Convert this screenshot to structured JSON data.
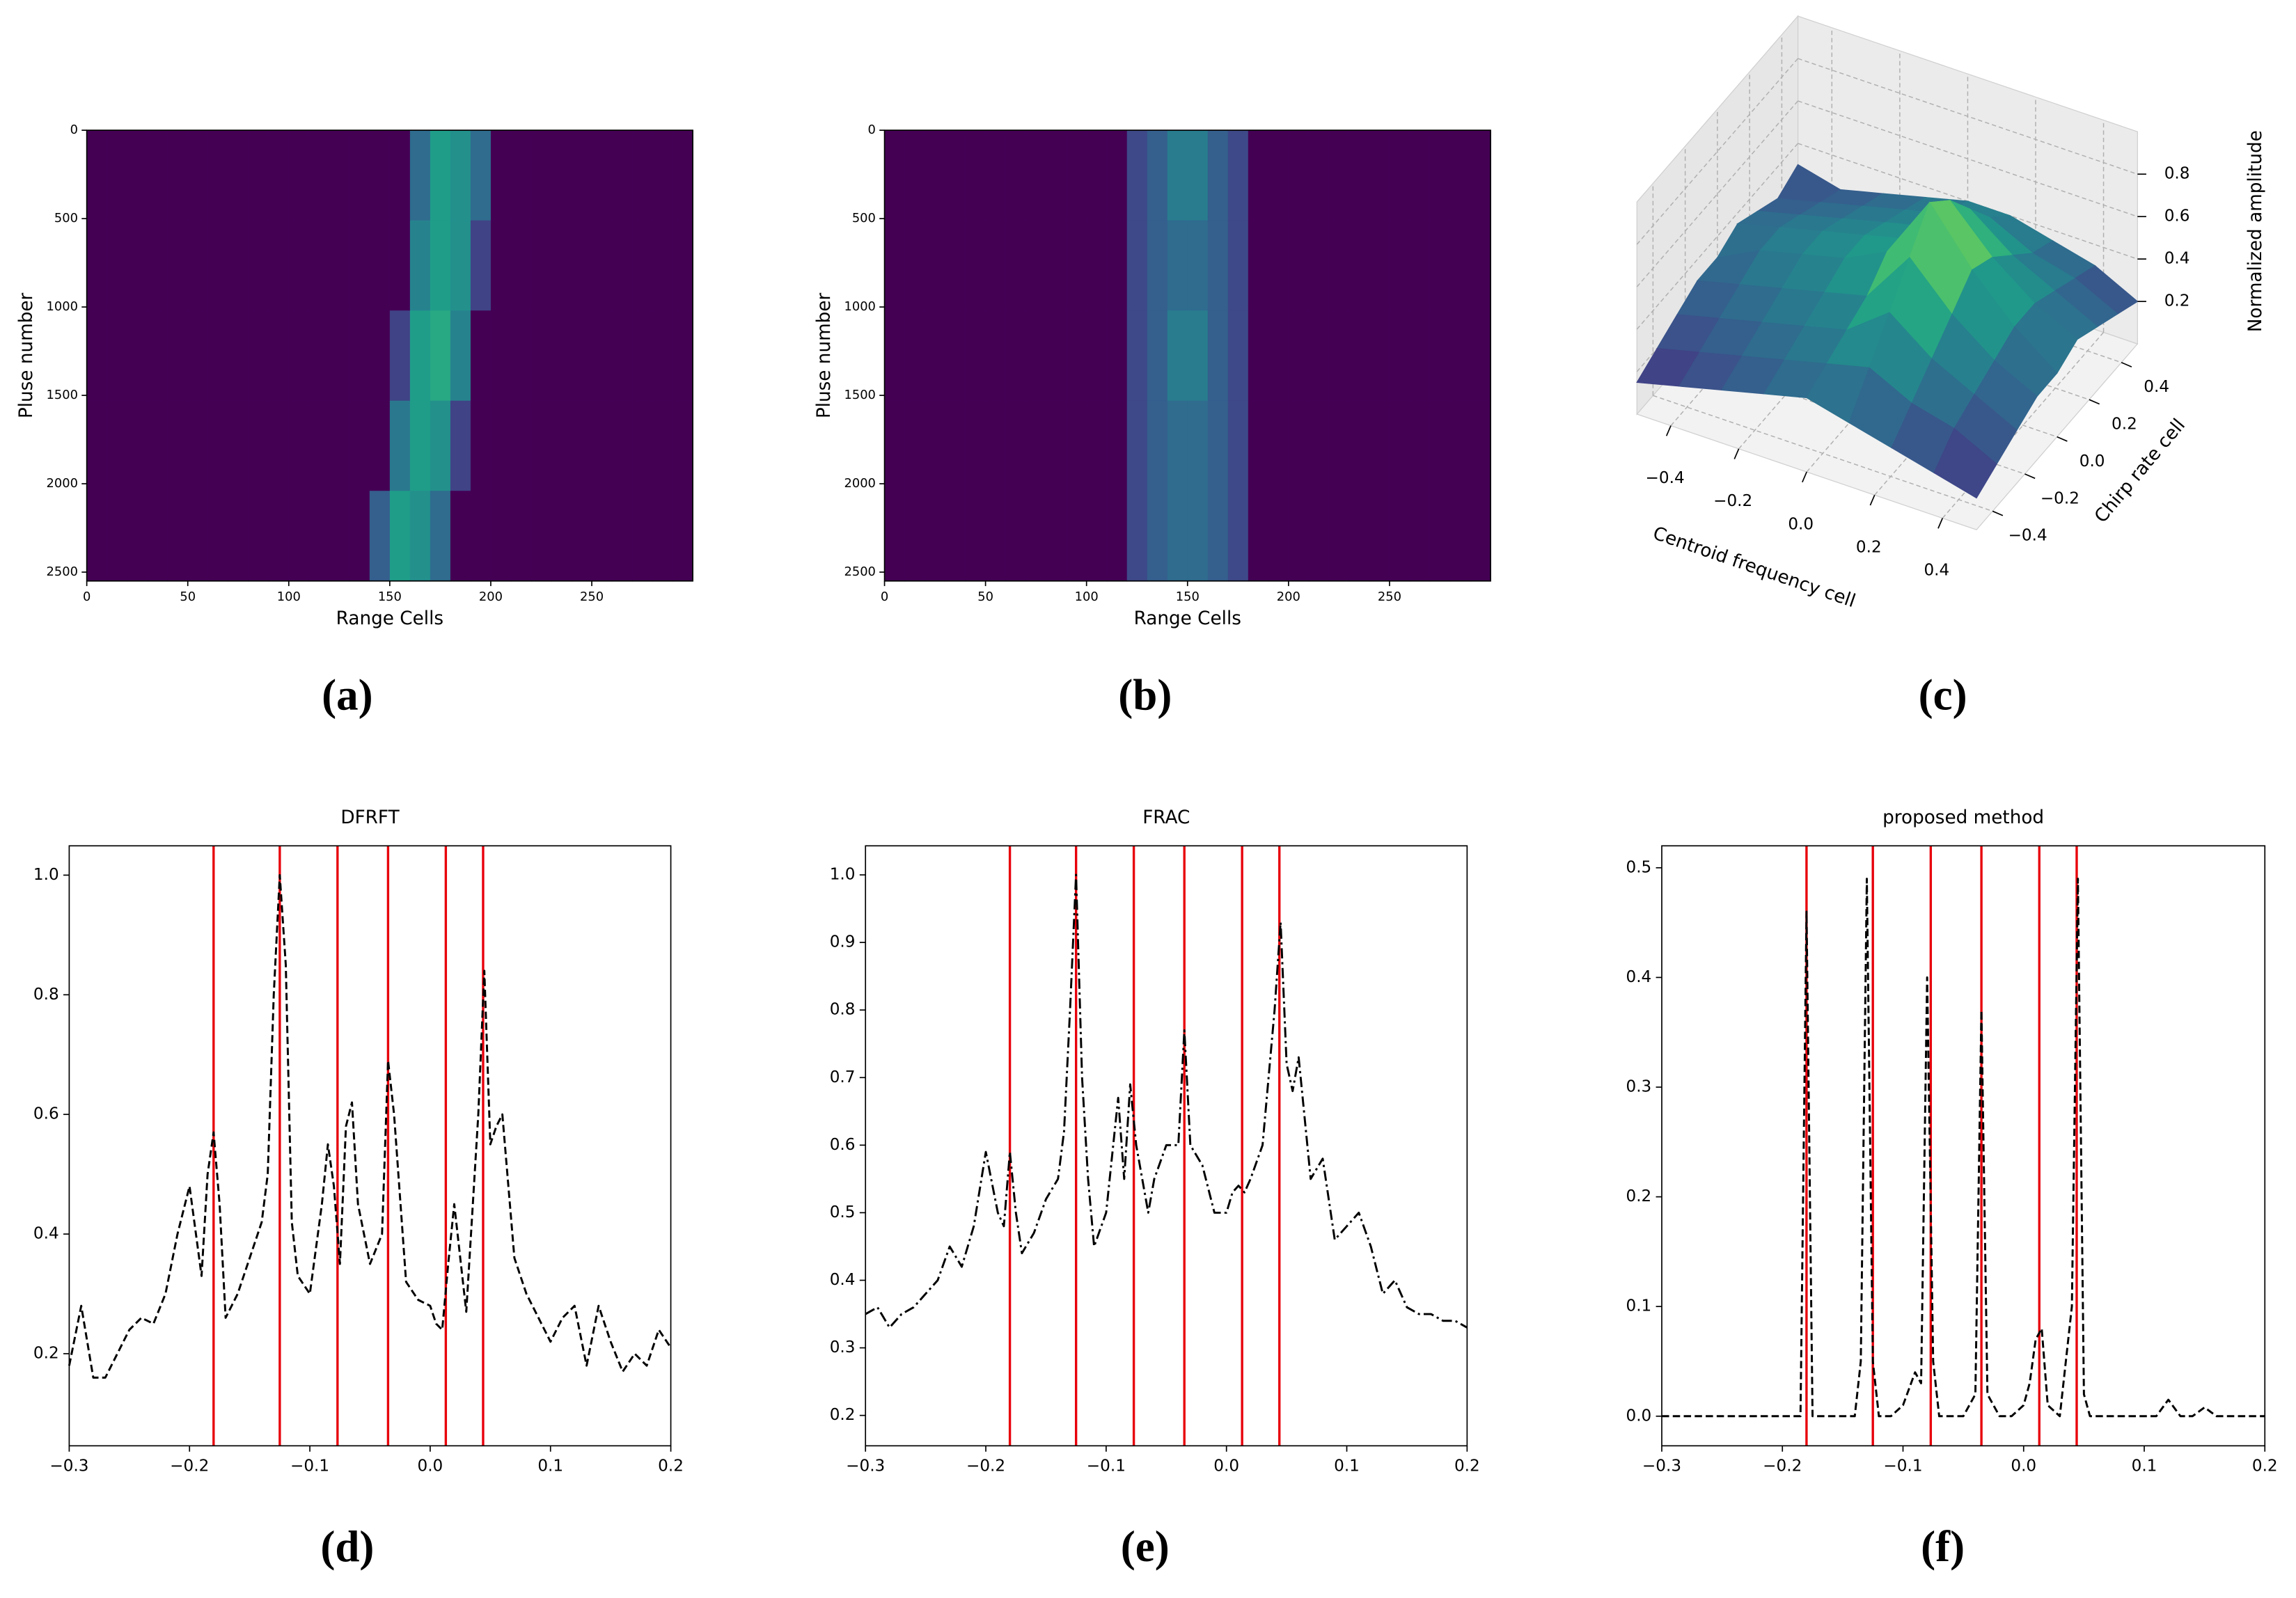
{
  "chart_data": [
    {
      "type": "heatmap",
      "panel_label": "(a)",
      "xlabel": "Range Cells",
      "ylabel": "Pluse number",
      "xlim": [
        0,
        300
      ],
      "ylim": [
        0,
        2550
      ],
      "y_inverted": true,
      "xticks": [
        0,
        50,
        100,
        150,
        200,
        250
      ],
      "yticks": [
        0,
        500,
        1000,
        1500,
        2000,
        2500
      ],
      "colormap": "viridis",
      "clim": [
        0,
        1
      ],
      "z": [
        [
          0,
          0,
          0,
          0,
          0,
          0,
          0,
          0,
          0,
          0,
          0,
          0,
          0,
          0,
          0,
          0,
          0.35,
          0.55,
          0.5,
          0.35,
          0,
          0,
          0,
          0,
          0,
          0,
          0,
          0,
          0,
          0
        ],
        [
          0,
          0,
          0,
          0,
          0,
          0,
          0,
          0,
          0,
          0,
          0,
          0,
          0,
          0,
          0,
          0,
          0.45,
          0.55,
          0.5,
          0.2,
          0,
          0,
          0,
          0,
          0,
          0,
          0,
          0,
          0,
          0
        ],
        [
          0,
          0,
          0,
          0,
          0,
          0,
          0,
          0,
          0,
          0,
          0,
          0,
          0,
          0,
          0,
          0.2,
          0.55,
          0.6,
          0.45,
          0,
          0,
          0,
          0,
          0,
          0,
          0,
          0,
          0,
          0,
          0
        ],
        [
          0,
          0,
          0,
          0,
          0,
          0,
          0,
          0,
          0,
          0,
          0,
          0,
          0,
          0,
          0,
          0.4,
          0.55,
          0.5,
          0.2,
          0,
          0,
          0,
          0,
          0,
          0,
          0,
          0,
          0,
          0,
          0
        ],
        [
          0,
          0,
          0,
          0,
          0,
          0,
          0,
          0,
          0,
          0,
          0,
          0,
          0,
          0,
          0.3,
          0.55,
          0.5,
          0.35,
          0,
          0,
          0,
          0,
          0,
          0,
          0,
          0,
          0,
          0,
          0,
          0
        ]
      ]
    },
    {
      "type": "heatmap",
      "panel_label": "(b)",
      "xlabel": "Range Cells",
      "ylabel": "Pluse number",
      "xlim": [
        0,
        300
      ],
      "ylim": [
        0,
        2550
      ],
      "y_inverted": true,
      "xticks": [
        0,
        50,
        100,
        150,
        200,
        250
      ],
      "yticks": [
        0,
        500,
        1000,
        1500,
        2000,
        2500
      ],
      "colormap": "viridis",
      "clim": [
        0,
        1
      ],
      "z": [
        [
          0,
          0,
          0,
          0,
          0,
          0,
          0,
          0,
          0,
          0,
          0,
          0,
          0.22,
          0.3,
          0.42,
          0.42,
          0.3,
          0.22,
          0,
          0,
          0,
          0,
          0,
          0,
          0,
          0,
          0,
          0,
          0,
          0
        ],
        [
          0,
          0,
          0,
          0,
          0,
          0,
          0,
          0,
          0,
          0,
          0,
          0,
          0.22,
          0.3,
          0.35,
          0.35,
          0.3,
          0.22,
          0,
          0,
          0,
          0,
          0,
          0,
          0,
          0,
          0,
          0,
          0,
          0
        ],
        [
          0,
          0,
          0,
          0,
          0,
          0,
          0,
          0,
          0,
          0,
          0,
          0,
          0.22,
          0.3,
          0.42,
          0.42,
          0.3,
          0.22,
          0,
          0,
          0,
          0,
          0,
          0,
          0,
          0,
          0,
          0,
          0,
          0
        ],
        [
          0,
          0,
          0,
          0,
          0,
          0,
          0,
          0,
          0,
          0,
          0,
          0,
          0.22,
          0.3,
          0.35,
          0.35,
          0.3,
          0.22,
          0,
          0,
          0,
          0,
          0,
          0,
          0,
          0,
          0,
          0,
          0,
          0
        ],
        [
          0,
          0,
          0,
          0,
          0,
          0,
          0,
          0,
          0,
          0,
          0,
          0,
          0.22,
          0.3,
          0.35,
          0.35,
          0.3,
          0.22,
          0,
          0,
          0,
          0,
          0,
          0,
          0,
          0,
          0,
          0,
          0,
          0
        ]
      ]
    },
    {
      "type": "surface3d",
      "panel_label": "(c)",
      "xlabel": "Centroid frequency cell",
      "ylabel": "Chirp rate cell",
      "zlabel": "Normalized amplitude",
      "xlim": [
        -0.5,
        0.5
      ],
      "ylim": [
        -0.5,
        0.5
      ],
      "zlim": [
        0,
        1
      ],
      "colormap": "viridis",
      "xticks": [
        {
          "value": -0.4,
          "label": "−0.4"
        },
        {
          "value": -0.2,
          "label": "−0.2"
        },
        {
          "value": 0,
          "label": "0.0"
        },
        0.2,
        0.4
      ],
      "yticks": [
        {
          "value": -0.4,
          "label": "−0.4"
        },
        {
          "value": -0.2,
          "label": "−0.2"
        },
        {
          "value": 0,
          "label": "0.0"
        },
        0.2,
        0.4
      ],
      "zticks": [
        0.2,
        0.4,
        0.6,
        0.8
      ],
      "x": [
        -0.5,
        -0.375,
        -0.25,
        -0.125,
        0,
        0.125,
        0.25,
        0.375,
        0.5
      ],
      "y": [
        -0.5,
        -0.375,
        -0.25,
        -0.125,
        0,
        0.125,
        0.25,
        0.375,
        0.5
      ],
      "z": [
        [
          0.15,
          0.2,
          0.25,
          0.3,
          0.35,
          0.3,
          0.25,
          0.2,
          0.15
        ],
        [
          0.2,
          0.25,
          0.3,
          0.35,
          0.4,
          0.45,
          0.35,
          0.3,
          0.2
        ],
        [
          0.25,
          0.3,
          0.35,
          0.4,
          0.45,
          0.6,
          0.45,
          0.35,
          0.25
        ],
        [
          0.3,
          0.35,
          0.4,
          0.45,
          0.5,
          0.75,
          0.55,
          0.4,
          0.3
        ],
        [
          0.3,
          0.4,
          0.45,
          0.5,
          0.6,
          0.9,
          0.65,
          0.45,
          0.3
        ],
        [
          0.35,
          0.4,
          0.45,
          0.5,
          0.55,
          0.8,
          0.6,
          0.45,
          0.35
        ],
        [
          0.3,
          0.35,
          0.4,
          0.45,
          0.5,
          0.65,
          0.5,
          0.4,
          0.3
        ],
        [
          0.25,
          0.3,
          0.35,
          0.4,
          0.45,
          0.5,
          0.4,
          0.35,
          0.25
        ],
        [
          0.3,
          0.25,
          0.3,
          0.35,
          0.4,
          0.4,
          0.35,
          0.3,
          0.2
        ]
      ]
    },
    {
      "type": "line",
      "panel_label": "(d)",
      "title": "DFRFT",
      "color": "#000000",
      "linestyle": "dashed",
      "vlines": [
        -0.18,
        -0.125,
        -0.077,
        -0.035,
        0.013,
        0.044
      ],
      "vline_color": "#e8000b",
      "xlim": [
        -0.3,
        0.2
      ],
      "ylim": [
        0.046,
        1.049
      ],
      "xticks": [
        {
          "value": -0.3,
          "label": "−0.3"
        },
        {
          "value": -0.2,
          "label": "−0.2"
        },
        {
          "value": -0.1,
          "label": "−0.1"
        },
        {
          "value": 0,
          "label": "0.0"
        },
        0.1,
        0.2
      ],
      "yticks": [
        0.2,
        0.4,
        0.6,
        0.8,
        {
          "value": 1,
          "label": "1.0"
        }
      ],
      "x": [
        -0.3,
        -0.29,
        -0.28,
        -0.27,
        -0.26,
        -0.25,
        -0.24,
        -0.23,
        -0.22,
        -0.21,
        -0.2,
        -0.19,
        -0.185,
        -0.18,
        -0.175,
        -0.17,
        -0.16,
        -0.15,
        -0.14,
        -0.135,
        -0.13,
        -0.125,
        -0.12,
        -0.115,
        -0.11,
        -0.1,
        -0.09,
        -0.085,
        -0.08,
        -0.075,
        -0.07,
        -0.065,
        -0.06,
        -0.05,
        -0.04,
        -0.035,
        -0.03,
        -0.02,
        -0.01,
        0,
        0.005,
        0.01,
        0.015,
        0.02,
        0.03,
        0.04,
        0.045,
        0.05,
        0.055,
        0.06,
        0.07,
        0.08,
        0.09,
        0.1,
        0.11,
        0.12,
        0.13,
        0.14,
        0.15,
        0.16,
        0.17,
        0.18,
        0.19,
        0.2
      ],
      "values": [
        0.18,
        0.28,
        0.16,
        0.16,
        0.2,
        0.24,
        0.26,
        0.25,
        0.3,
        0.4,
        0.48,
        0.33,
        0.5,
        0.57,
        0.45,
        0.26,
        0.3,
        0.36,
        0.42,
        0.5,
        0.8,
        1.0,
        0.85,
        0.42,
        0.33,
        0.3,
        0.45,
        0.55,
        0.48,
        0.35,
        0.58,
        0.62,
        0.45,
        0.35,
        0.4,
        0.69,
        0.6,
        0.32,
        0.29,
        0.28,
        0.25,
        0.24,
        0.35,
        0.45,
        0.27,
        0.6,
        0.84,
        0.55,
        0.58,
        0.6,
        0.36,
        0.3,
        0.26,
        0.22,
        0.26,
        0.28,
        0.18,
        0.28,
        0.22,
        0.17,
        0.2,
        0.18,
        0.24,
        0.21
      ]
    },
    {
      "type": "line",
      "panel_label": "(e)",
      "title": "FRAC",
      "color": "#000000",
      "linestyle": "dashdot",
      "vlines": [
        -0.18,
        -0.125,
        -0.077,
        -0.035,
        0.013,
        0.044
      ],
      "vline_color": "#e8000b",
      "xlim": [
        -0.3,
        0.2
      ],
      "ylim": [
        0.155,
        1.043
      ],
      "xticks": [
        {
          "value": -0.3,
          "label": "−0.3"
        },
        {
          "value": -0.2,
          "label": "−0.2"
        },
        {
          "value": -0.1,
          "label": "−0.1"
        },
        {
          "value": 0,
          "label": "0.0"
        },
        0.1,
        0.2
      ],
      "yticks": [
        0.2,
        0.3,
        0.4,
        0.5,
        0.6,
        0.7,
        0.8,
        0.9,
        {
          "value": 1,
          "label": "1.0"
        }
      ],
      "x": [
        -0.3,
        -0.29,
        -0.28,
        -0.27,
        -0.26,
        -0.25,
        -0.24,
        -0.23,
        -0.22,
        -0.21,
        -0.2,
        -0.19,
        -0.185,
        -0.18,
        -0.175,
        -0.17,
        -0.16,
        -0.15,
        -0.14,
        -0.135,
        -0.13,
        -0.125,
        -0.12,
        -0.115,
        -0.11,
        -0.1,
        -0.09,
        -0.085,
        -0.08,
        -0.075,
        -0.07,
        -0.065,
        -0.06,
        -0.05,
        -0.04,
        -0.035,
        -0.03,
        -0.02,
        -0.01,
        0,
        0.005,
        0.01,
        0.015,
        0.02,
        0.03,
        0.04,
        0.045,
        0.05,
        0.055,
        0.06,
        0.07,
        0.08,
        0.09,
        0.1,
        0.11,
        0.12,
        0.13,
        0.14,
        0.15,
        0.16,
        0.17,
        0.18,
        0.19,
        0.2
      ],
      "values": [
        0.35,
        0.36,
        0.33,
        0.35,
        0.36,
        0.38,
        0.4,
        0.45,
        0.42,
        0.48,
        0.59,
        0.5,
        0.48,
        0.59,
        0.5,
        0.44,
        0.47,
        0.52,
        0.55,
        0.62,
        0.8,
        1.0,
        0.7,
        0.55,
        0.45,
        0.5,
        0.67,
        0.55,
        0.69,
        0.6,
        0.55,
        0.5,
        0.55,
        0.6,
        0.6,
        0.77,
        0.6,
        0.57,
        0.5,
        0.5,
        0.53,
        0.54,
        0.53,
        0.55,
        0.6,
        0.8,
        0.93,
        0.72,
        0.68,
        0.73,
        0.55,
        0.58,
        0.46,
        0.48,
        0.5,
        0.45,
        0.38,
        0.4,
        0.36,
        0.35,
        0.35,
        0.34,
        0.34,
        0.33
      ]
    },
    {
      "type": "line",
      "panel_label": "(f)",
      "title": "proposed method",
      "color": "#000000",
      "linestyle": "dashed",
      "vlines": [
        -0.18,
        -0.125,
        -0.077,
        -0.035,
        0.013,
        0.044
      ],
      "vline_color": "#e8000b",
      "xlim": [
        -0.3,
        0.2
      ],
      "ylim": [
        -0.027,
        0.52
      ],
      "xticks": [
        {
          "value": -0.3,
          "label": "−0.3"
        },
        {
          "value": -0.2,
          "label": "−0.2"
        },
        {
          "value": -0.1,
          "label": "−0.1"
        },
        {
          "value": 0,
          "label": "0.0"
        },
        0.1,
        0.2
      ],
      "yticks": [
        {
          "value": 0,
          "label": "0.0"
        },
        0.1,
        0.2,
        0.3,
        0.4,
        0.5
      ],
      "x": [
        -0.3,
        -0.29,
        -0.28,
        -0.27,
        -0.26,
        -0.25,
        -0.24,
        -0.23,
        -0.22,
        -0.21,
        -0.2,
        -0.19,
        -0.185,
        -0.18,
        -0.175,
        -0.17,
        -0.16,
        -0.15,
        -0.14,
        -0.135,
        -0.13,
        -0.125,
        -0.12,
        -0.115,
        -0.11,
        -0.1,
        -0.09,
        -0.085,
        -0.08,
        -0.075,
        -0.07,
        -0.065,
        -0.06,
        -0.05,
        -0.04,
        -0.035,
        -0.03,
        -0.02,
        -0.01,
        0,
        0.005,
        0.01,
        0.015,
        0.02,
        0.03,
        0.04,
        0.045,
        0.05,
        0.055,
        0.06,
        0.07,
        0.08,
        0.09,
        0.1,
        0.11,
        0.12,
        0.13,
        0.14,
        0.15,
        0.16,
        0.17,
        0.18,
        0.19,
        0.2
      ],
      "values": [
        0,
        0,
        0,
        0,
        0,
        0,
        0,
        0,
        0,
        0,
        0,
        0,
        0,
        0.46,
        0,
        0,
        0,
        0,
        0,
        0.05,
        0.49,
        0.05,
        0,
        0,
        0,
        0.01,
        0.04,
        0.03,
        0.4,
        0.05,
        0,
        0,
        0,
        0,
        0.02,
        0.37,
        0.02,
        0,
        0,
        0.01,
        0.03,
        0.07,
        0.08,
        0.01,
        0,
        0.1,
        0.49,
        0.02,
        0,
        0,
        0,
        0,
        0,
        0,
        0,
        0.015,
        0,
        0,
        0.008,
        0,
        0,
        0,
        0,
        0
      ]
    }
  ]
}
